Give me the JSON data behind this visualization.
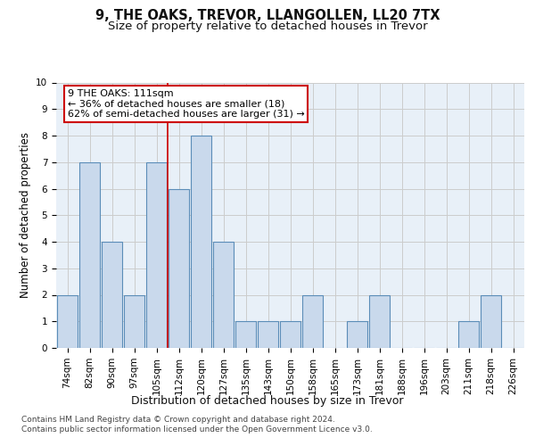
{
  "title1": "9, THE OAKS, TREVOR, LLANGOLLEN, LL20 7TX",
  "title2": "Size of property relative to detached houses in Trevor",
  "xlabel": "Distribution of detached houses by size in Trevor",
  "ylabel": "Number of detached properties",
  "categories": [
    "74sqm",
    "82sqm",
    "90sqm",
    "97sqm",
    "105sqm",
    "112sqm",
    "120sqm",
    "127sqm",
    "135sqm",
    "143sqm",
    "150sqm",
    "158sqm",
    "165sqm",
    "173sqm",
    "181sqm",
    "188sqm",
    "196sqm",
    "203sqm",
    "211sqm",
    "218sqm",
    "226sqm"
  ],
  "values": [
    2,
    7,
    4,
    2,
    7,
    6,
    8,
    4,
    1,
    1,
    1,
    2,
    0,
    1,
    2,
    0,
    0,
    0,
    1,
    2,
    0
  ],
  "bar_color": "#c9d9ec",
  "bar_edge_color": "#5b8db8",
  "grid_color": "#cccccc",
  "vline_color": "#cc0000",
  "vline_pos": 4.5,
  "annotation_box_text": "9 THE OAKS: 111sqm\n← 36% of detached houses are smaller (18)\n62% of semi-detached houses are larger (31) →",
  "annotation_box_color": "#ffffff",
  "annotation_box_edge": "#cc0000",
  "ylim": [
    0,
    10
  ],
  "yticks": [
    0,
    1,
    2,
    3,
    4,
    5,
    6,
    7,
    8,
    9,
    10
  ],
  "footnote1": "Contains HM Land Registry data © Crown copyright and database right 2024.",
  "footnote2": "Contains public sector information licensed under the Open Government Licence v3.0.",
  "background_color": "#e8f0f8",
  "fig_background": "#ffffff",
  "title1_fontsize": 10.5,
  "title2_fontsize": 9.5,
  "xlabel_fontsize": 9,
  "ylabel_fontsize": 8.5,
  "tick_fontsize": 7.5,
  "footnote_fontsize": 6.5,
  "annot_fontsize": 8
}
